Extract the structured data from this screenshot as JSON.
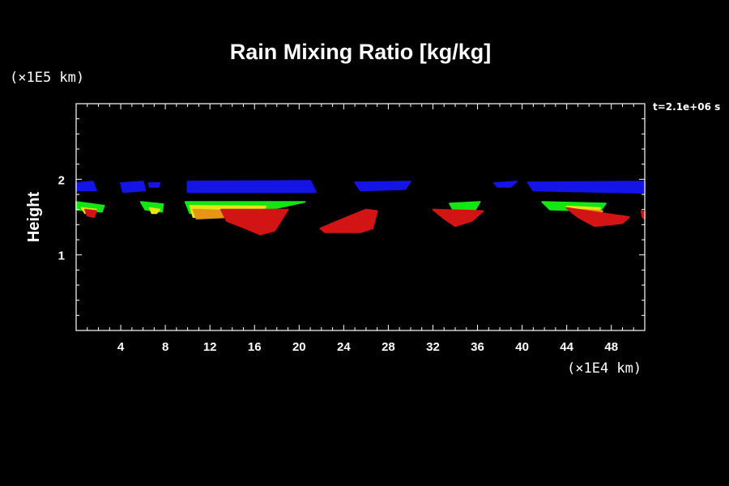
{
  "chart_data": {
    "type": "heatmap",
    "title": "Rain Mixing Ratio [kg/kg]",
    "ylabel": "Height",
    "xlabel": "",
    "y_units": "(×1E5 km)",
    "x_units": "(×1E4 km)",
    "time_label": "t=2.1e+06 s",
    "xlim": [
      0,
      51
    ],
    "ylim": [
      0,
      3
    ],
    "x_ticks": [
      4,
      8,
      12,
      16,
      20,
      24,
      28,
      32,
      36,
      40,
      44,
      48
    ],
    "y_ticks": [
      1,
      2
    ],
    "grid": false,
    "colors": {
      "background": "#000000",
      "blue": "#1414e6",
      "green": "#14e614",
      "yellow": "#e6e614",
      "orange": "#e69614",
      "red": "#d21414"
    },
    "regions": [
      {
        "color": "blue",
        "points": [
          [
            0,
            1.95
          ],
          [
            1.5,
            1.97
          ],
          [
            1.8,
            1.85
          ],
          [
            0,
            1.85
          ]
        ]
      },
      {
        "color": "blue",
        "points": [
          [
            4,
            1.95
          ],
          [
            6,
            1.97
          ],
          [
            6.2,
            1.85
          ],
          [
            4.2,
            1.83
          ]
        ]
      },
      {
        "color": "blue",
        "points": [
          [
            6.5,
            1.95
          ],
          [
            7.5,
            1.95
          ],
          [
            7.4,
            1.9
          ],
          [
            6.6,
            1.9
          ]
        ]
      },
      {
        "color": "blue",
        "points": [
          [
            10,
            1.97
          ],
          [
            21,
            1.98
          ],
          [
            21.5,
            1.83
          ],
          [
            10,
            1.83
          ]
        ]
      },
      {
        "color": "blue",
        "points": [
          [
            25,
            1.96
          ],
          [
            30,
            1.97
          ],
          [
            29.5,
            1.87
          ],
          [
            25.5,
            1.85
          ]
        ]
      },
      {
        "color": "blue",
        "points": [
          [
            37.5,
            1.95
          ],
          [
            39.5,
            1.97
          ],
          [
            39,
            1.9
          ],
          [
            37.8,
            1.9
          ]
        ]
      },
      {
        "color": "blue",
        "points": [
          [
            40.5,
            1.96
          ],
          [
            51,
            1.97
          ],
          [
            51,
            1.82
          ],
          [
            41,
            1.85
          ]
        ]
      },
      {
        "color": "green",
        "points": [
          [
            0,
            1.7
          ],
          [
            2.5,
            1.65
          ],
          [
            2.3,
            1.57
          ],
          [
            0,
            1.6
          ]
        ]
      },
      {
        "color": "green",
        "points": [
          [
            5.8,
            1.7
          ],
          [
            7.8,
            1.67
          ],
          [
            7.7,
            1.57
          ],
          [
            6.2,
            1.6
          ]
        ]
      },
      {
        "color": "green",
        "points": [
          [
            9.8,
            1.7
          ],
          [
            20.5,
            1.7
          ],
          [
            18,
            1.62
          ],
          [
            10.2,
            1.55
          ]
        ]
      },
      {
        "color": "green",
        "points": [
          [
            33.5,
            1.68
          ],
          [
            36.2,
            1.7
          ],
          [
            35.8,
            1.6
          ],
          [
            33.8,
            1.6
          ]
        ]
      },
      {
        "color": "green",
        "points": [
          [
            41.8,
            1.7
          ],
          [
            47.5,
            1.68
          ],
          [
            47,
            1.58
          ],
          [
            42.5,
            1.6
          ]
        ]
      },
      {
        "color": "yellow",
        "points": [
          [
            10.2,
            1.65
          ],
          [
            17,
            1.64
          ],
          [
            16.5,
            1.52
          ],
          [
            10.5,
            1.5
          ]
        ]
      },
      {
        "color": "yellow",
        "points": [
          [
            0.5,
            1.62
          ],
          [
            1.8,
            1.6
          ],
          [
            1.6,
            1.55
          ],
          [
            0.8,
            1.55
          ]
        ]
      },
      {
        "color": "yellow",
        "points": [
          [
            6.6,
            1.62
          ],
          [
            7.5,
            1.6
          ],
          [
            7.2,
            1.55
          ],
          [
            6.8,
            1.55
          ]
        ]
      },
      {
        "color": "yellow",
        "points": [
          [
            44,
            1.64
          ],
          [
            47,
            1.62
          ],
          [
            46.8,
            1.56
          ],
          [
            44.5,
            1.58
          ]
        ]
      },
      {
        "color": "orange",
        "points": [
          [
            10.5,
            1.6
          ],
          [
            14.5,
            1.58
          ],
          [
            13.8,
            1.5
          ],
          [
            10.8,
            1.48
          ]
        ]
      },
      {
        "color": "orange",
        "points": [
          [
            45,
            1.6
          ],
          [
            47.2,
            1.58
          ],
          [
            47,
            1.52
          ],
          [
            45.5,
            1.53
          ]
        ]
      },
      {
        "color": "red",
        "points": [
          [
            13,
            1.6
          ],
          [
            19,
            1.6
          ],
          [
            17.8,
            1.32
          ],
          [
            16.5,
            1.27
          ],
          [
            15.2,
            1.35
          ],
          [
            13.5,
            1.45
          ]
        ]
      },
      {
        "color": "red",
        "points": [
          [
            21.9,
            1.35
          ],
          [
            23.5,
            1.45
          ],
          [
            26,
            1.6
          ],
          [
            27,
            1.58
          ],
          [
            26.6,
            1.35
          ],
          [
            25.5,
            1.3
          ],
          [
            22.3,
            1.3
          ]
        ]
      },
      {
        "color": "red",
        "points": [
          [
            32,
            1.6
          ],
          [
            36.5,
            1.58
          ],
          [
            35.5,
            1.45
          ],
          [
            34,
            1.38
          ],
          [
            33,
            1.48
          ]
        ]
      },
      {
        "color": "red",
        "points": [
          [
            0.8,
            1.6
          ],
          [
            1.8,
            1.58
          ],
          [
            1.6,
            1.5
          ],
          [
            1,
            1.52
          ]
        ]
      },
      {
        "color": "red",
        "points": [
          [
            44,
            1.62
          ],
          [
            49.6,
            1.5
          ],
          [
            49,
            1.42
          ],
          [
            46.5,
            1.38
          ],
          [
            45,
            1.5
          ]
        ]
      },
      {
        "color": "red",
        "points": [
          [
            50.7,
            1.58
          ],
          [
            51,
            1.56
          ],
          [
            51,
            1.48
          ],
          [
            50.8,
            1.5
          ]
        ]
      }
    ]
  }
}
